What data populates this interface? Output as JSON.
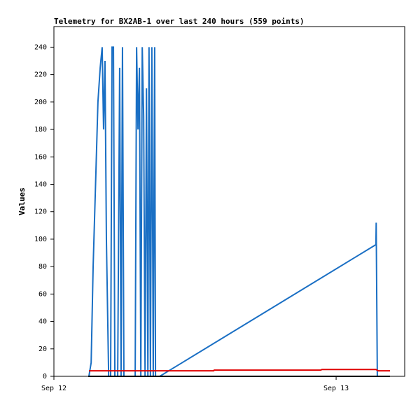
{
  "chart_data": {
    "type": "line",
    "title": "Telemetry for BX2AB-1 over last 240 hours (559 points)",
    "ylabel": "Values",
    "xlim": [
      0,
      1.243
    ],
    "xticks": [
      {
        "value": 0,
        "label": "Sep 12"
      },
      {
        "value": 1,
        "label": "Sep 13"
      }
    ],
    "ylim": [
      0,
      255
    ],
    "yticks": [
      0,
      20,
      40,
      60,
      80,
      100,
      120,
      140,
      160,
      180,
      200,
      220,
      240
    ],
    "grid": false,
    "series": [
      {
        "color": "#1a6fc4",
        "x": [
          0.124,
          0.132,
          0.139,
          0.149,
          0.156,
          0.164,
          0.171,
          0.176,
          0.181,
          0.186,
          0.194,
          0.201,
          0.206,
          0.211,
          0.216,
          0.226,
          0.233,
          0.238,
          0.243,
          0.248,
          0.288,
          0.293,
          0.298,
          0.303,
          0.308,
          0.313,
          0.318,
          0.323,
          0.328,
          0.333,
          0.337,
          0.342,
          0.347,
          0.352,
          0.357,
          0.36,
          0.375,
          1.141,
          1.142,
          1.144,
          1.146
        ],
        "values": [
          0,
          10,
          80,
          150,
          200,
          225,
          240,
          180,
          230,
          100,
          0,
          0,
          240,
          240,
          0,
          0,
          225,
          0,
          240,
          0,
          0,
          240,
          180,
          225,
          0,
          240,
          190,
          0,
          210,
          0,
          240,
          0,
          240,
          0,
          240,
          0,
          0,
          96,
          112,
          56,
          0
        ]
      },
      {
        "color": "#e00000",
        "x": [
          0.124,
          0.566,
          0.568,
          0.945,
          0.95,
          1.141,
          1.149,
          1.191
        ],
        "values": [
          4,
          4,
          4.5,
          4.5,
          5,
          5,
          4,
          4
        ]
      },
      {
        "color": "#000000",
        "x": [
          0.122,
          1.191
        ],
        "values": [
          0,
          0
        ]
      }
    ]
  }
}
